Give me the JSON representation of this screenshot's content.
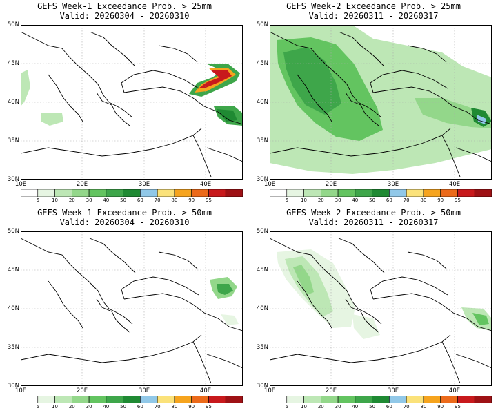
{
  "panels": [
    {
      "title": "GEFS Week-1 Exceedance Prob. > 25mm",
      "valid": "Valid: 20260304 - 20260310"
    },
    {
      "title": "GEFS Week-2 Exceedance Prob. > 25mm",
      "valid": "Valid: 20260311 - 20260317"
    },
    {
      "title": "GEFS Week-1 Exceedance Prob. > 50mm",
      "valid": "Valid: 20260304 - 20260310"
    },
    {
      "title": "GEFS Week-2 Exceedance Prob. > 50mm",
      "valid": "Valid: 20260311 - 20260317"
    }
  ],
  "axes": {
    "lat_labels": [
      "50N",
      "45N",
      "40N",
      "35N",
      "30N"
    ],
    "lon_labels": [
      "10E",
      "20E",
      "30E",
      "40E"
    ]
  },
  "colorbar": {
    "labels": [
      "5",
      "10",
      "20",
      "30",
      "40",
      "50",
      "60",
      "70",
      "80",
      "90",
      "95"
    ],
    "colors": [
      "#ffffff",
      "#e6f5e2",
      "#bde7b5",
      "#93d78a",
      "#63c460",
      "#3ea64a",
      "#1f8a33",
      "#91c8e8",
      "#fbe27a",
      "#f6a41e",
      "#ec6a1a",
      "#c8191c",
      "#9e1115"
    ]
  }
}
